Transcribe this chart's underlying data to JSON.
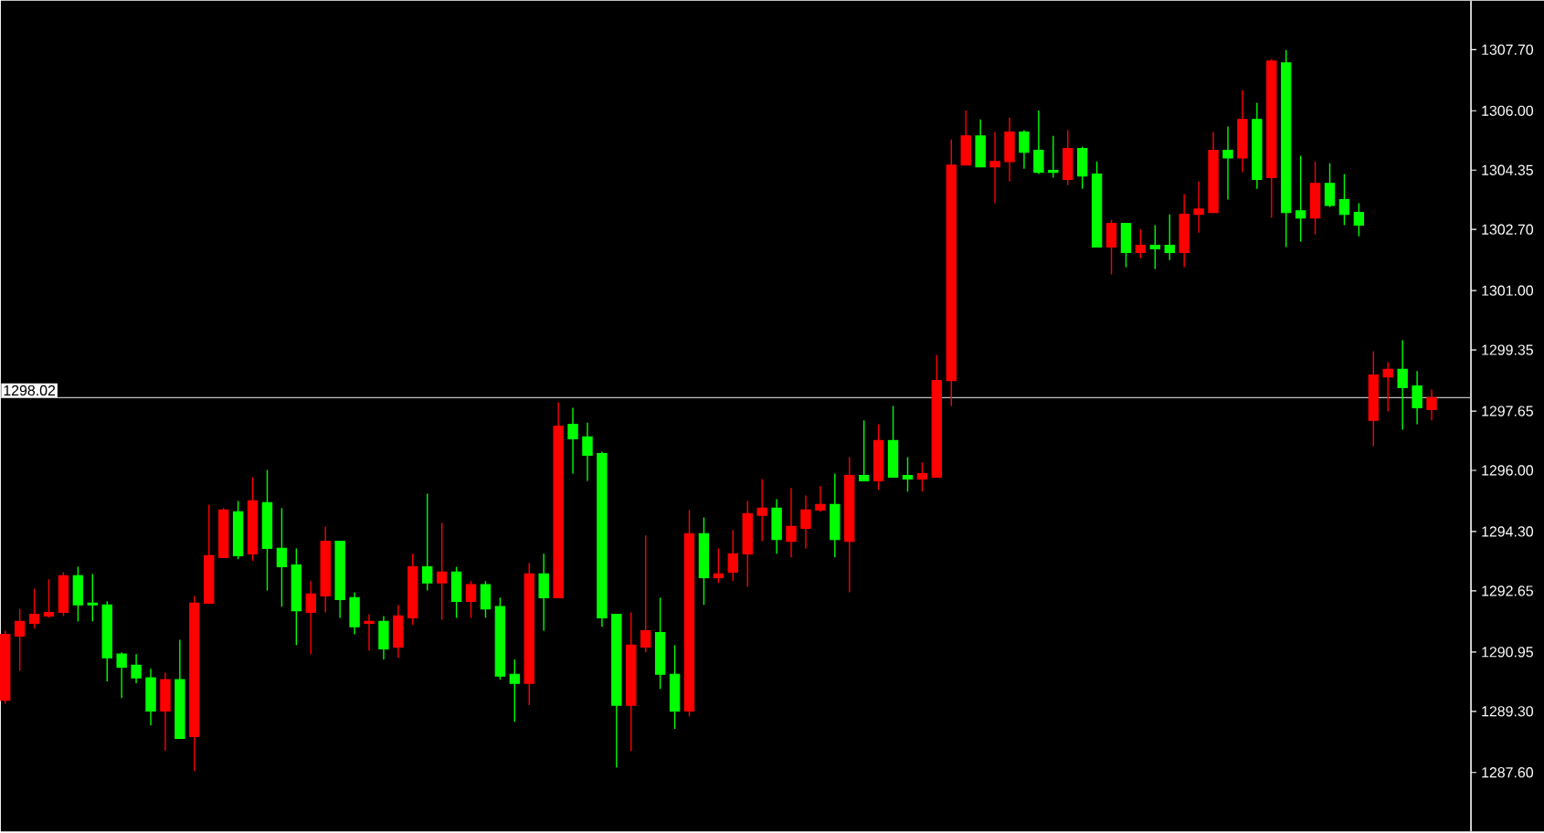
{
  "chart_data": {
    "type": "candlestick",
    "categories": [
      null,
      null,
      null,
      null,
      null,
      null,
      null,
      null,
      null,
      null,
      null,
      null,
      null,
      null,
      null,
      null,
      null,
      null,
      null,
      null,
      null,
      null,
      null,
      null,
      null,
      null,
      null,
      null,
      null,
      null,
      null,
      null,
      null,
      null,
      null,
      null,
      null,
      null,
      null,
      null,
      null,
      null,
      null,
      null,
      null,
      null,
      null,
      null,
      null,
      null,
      null,
      null,
      null,
      null,
      null,
      null,
      null,
      null,
      null,
      null,
      null,
      null,
      null,
      null,
      null,
      null,
      null,
      null,
      null,
      null,
      null,
      null,
      null,
      null,
      null,
      null,
      null,
      null,
      null,
      null,
      null,
      null,
      null,
      null,
      null,
      null,
      null,
      null,
      null,
      null,
      null,
      null,
      null,
      null,
      null,
      null,
      null,
      null,
      null
    ],
    "ohlc": [
      [
        1289.61,
        1291.54,
        1289.51,
        1291.44
      ],
      [
        1291.39,
        1292.15,
        1290.43,
        1291.8
      ],
      [
        1291.75,
        1292.71,
        1291.6,
        1292.0
      ],
      [
        1291.95,
        1292.97,
        1291.9,
        1292.05
      ],
      [
        1292.05,
        1293.17,
        1291.95,
        1293.07
      ],
      [
        1293.07,
        1293.32,
        1291.8,
        1292.26
      ],
      [
        1292.31,
        1293.12,
        1291.8,
        1292.26
      ],
      [
        1292.26,
        1292.36,
        1290.13,
        1290.79
      ],
      [
        1290.89,
        1290.94,
        1289.67,
        1290.53
      ],
      [
        1290.58,
        1290.89,
        1290.08,
        1290.23
      ],
      [
        1290.23,
        1290.48,
        1288.91,
        1289.31
      ],
      [
        1289.31,
        1290.38,
        1288.2,
        1290.18
      ],
      [
        1290.18,
        1291.29,
        1288.55,
        1288.55
      ],
      [
        1288.6,
        1292.51,
        1287.64,
        1292.31
      ],
      [
        1292.31,
        1295.05,
        1292.31,
        1293.63
      ],
      [
        1293.58,
        1294.95,
        1293.58,
        1294.9
      ],
      [
        1294.85,
        1295.15,
        1293.53,
        1293.63
      ],
      [
        1293.68,
        1295.81,
        1293.48,
        1295.15
      ],
      [
        1295.1,
        1296.01,
        1292.66,
        1293.83
      ],
      [
        1293.83,
        1294.95,
        1292.21,
        1293.32
      ],
      [
        1293.37,
        1293.83,
        1291.14,
        1292.1
      ],
      [
        1292.05,
        1292.92,
        1290.89,
        1292.56
      ],
      [
        1292.51,
        1294.44,
        1292.05,
        1294.03
      ],
      [
        1294.03,
        1294.03,
        1291.9,
        1292.41
      ],
      [
        1292.46,
        1292.61,
        1291.44,
        1291.65
      ],
      [
        1291.75,
        1292.0,
        1290.99,
        1291.8
      ],
      [
        1291.8,
        1291.95,
        1290.74,
        1291.04
      ],
      [
        1291.09,
        1292.26,
        1290.79,
        1291.95
      ],
      [
        1291.9,
        1293.68,
        1291.7,
        1293.32
      ],
      [
        1293.32,
        1295.35,
        1292.66,
        1292.87
      ],
      [
        1292.87,
        1294.54,
        1291.85,
        1293.17
      ],
      [
        1293.17,
        1293.32,
        1291.9,
        1292.36
      ],
      [
        1292.36,
        1292.92,
        1291.9,
        1292.82
      ],
      [
        1292.82,
        1292.92,
        1291.9,
        1292.15
      ],
      [
        1292.21,
        1292.46,
        1290.18,
        1290.28
      ],
      [
        1290.33,
        1290.74,
        1289.01,
        1290.08
      ],
      [
        1290.08,
        1293.43,
        1289.47,
        1293.12
      ],
      [
        1293.12,
        1293.68,
        1291.54,
        1292.46
      ],
      [
        1292.46,
        1297.89,
        1292.46,
        1297.23
      ],
      [
        1297.28,
        1297.74,
        1295.91,
        1296.88
      ],
      [
        1296.93,
        1297.33,
        1295.71,
        1296.42
      ],
      [
        1296.47,
        1296.52,
        1291.65,
        1291.9
      ],
      [
        1292.0,
        1292.0,
        1287.74,
        1289.47
      ],
      [
        1289.47,
        1292.05,
        1288.2,
        1291.14
      ],
      [
        1291.09,
        1294.19,
        1290.94,
        1291.54
      ],
      [
        1291.49,
        1292.46,
        1289.92,
        1290.33
      ],
      [
        1290.33,
        1291.14,
        1288.81,
        1289.31
      ],
      [
        1289.31,
        1294.9,
        1289.16,
        1294.24
      ],
      [
        1294.24,
        1294.69,
        1292.26,
        1293.02
      ],
      [
        1293.02,
        1293.83,
        1292.87,
        1293.12
      ],
      [
        1293.17,
        1294.34,
        1292.92,
        1293.68
      ],
      [
        1293.68,
        1295.15,
        1292.77,
        1294.8
      ],
      [
        1294.75,
        1295.76,
        1294.03,
        1294.95
      ],
      [
        1294.95,
        1295.2,
        1293.68,
        1294.08
      ],
      [
        1294.03,
        1295.51,
        1293.58,
        1294.44
      ],
      [
        1294.39,
        1295.3,
        1293.83,
        1294.9
      ],
      [
        1294.9,
        1295.56,
        1294.85,
        1295.05
      ],
      [
        1295.05,
        1295.91,
        1293.58,
        1294.08
      ],
      [
        1294.03,
        1296.37,
        1292.61,
        1295.86
      ],
      [
        1295.86,
        1297.39,
        1295.71,
        1295.71
      ],
      [
        1295.71,
        1297.28,
        1295.46,
        1296.83
      ],
      [
        1296.83,
        1297.79,
        1295.81,
        1295.81
      ],
      [
        1295.86,
        1296.37,
        1295.41,
        1295.76
      ],
      [
        1295.76,
        1296.22,
        1295.41,
        1295.91
      ],
      [
        1295.81,
        1299.21,
        1295.81,
        1298.5
      ],
      [
        1298.5,
        1305.2,
        1297.79,
        1304.49
      ],
      [
        1304.49,
        1306.01,
        1304.49,
        1305.3
      ],
      [
        1305.3,
        1305.76,
        1304.44,
        1304.44
      ],
      [
        1304.44,
        1305.41,
        1303.43,
        1304.59
      ],
      [
        1304.59,
        1305.81,
        1304.03,
        1305.41
      ],
      [
        1305.41,
        1305.46,
        1304.39,
        1304.85
      ],
      [
        1304.9,
        1306.01,
        1304.24,
        1304.29
      ],
      [
        1304.34,
        1305.3,
        1304.14,
        1304.29
      ],
      [
        1304.09,
        1305.46,
        1303.93,
        1304.95
      ],
      [
        1304.95,
        1305.0,
        1303.83,
        1304.19
      ],
      [
        1304.24,
        1304.59,
        1302.21,
        1302.21
      ],
      [
        1302.21,
        1302.97,
        1301.45,
        1302.87
      ],
      [
        1302.87,
        1302.87,
        1301.65,
        1302.06
      ],
      [
        1302.06,
        1302.71,
        1301.9,
        1302.26
      ],
      [
        1302.26,
        1302.82,
        1301.6,
        1302.16
      ],
      [
        1302.26,
        1303.12,
        1301.85,
        1302.06
      ],
      [
        1302.06,
        1303.68,
        1301.65,
        1303.12
      ],
      [
        1303.12,
        1304.03,
        1302.61,
        1303.27
      ],
      [
        1303.17,
        1305.41,
        1303.17,
        1304.9
      ],
      [
        1304.9,
        1305.56,
        1303.53,
        1304.69
      ],
      [
        1304.69,
        1306.57,
        1304.29,
        1305.76
      ],
      [
        1305.76,
        1306.22,
        1303.83,
        1304.09
      ],
      [
        1304.14,
        1307.44,
        1303.02,
        1307.38
      ],
      [
        1307.33,
        1307.69,
        1302.21,
        1303.17
      ],
      [
        1303.22,
        1304.75,
        1302.36,
        1303.02
      ],
      [
        1303.02,
        1304.59,
        1302.56,
        1303.98
      ],
      [
        1303.98,
        1304.54,
        1303.32,
        1303.37
      ],
      [
        1303.53,
        1304.24,
        1302.82,
        1303.12
      ],
      [
        1303.17,
        1303.43,
        1302.51,
        1302.82
      ],
      [
        1297.39,
        1299.31,
        1296.67,
        1298.65
      ],
      [
        1298.6,
        1299.01,
        1297.64,
        1298.81
      ],
      [
        1298.81,
        1299.62,
        1297.13,
        1298.3
      ],
      [
        1298.35,
        1298.76,
        1297.28,
        1297.74
      ],
      [
        1297.69,
        1298.25,
        1297.39,
        1298.02
      ]
    ],
    "colors": [
      "#ff0000",
      "#ff0000",
      "#ff0000",
      "#ff0000",
      "#ff0000",
      "#00ff00",
      "#00ff00",
      "#00ff00",
      "#00ff00",
      "#00ff00",
      "#00ff00",
      "#ff0000",
      "#00ff00",
      "#ff0000",
      "#ff0000",
      "#ff0000",
      "#00ff00",
      "#ff0000",
      "#00ff00",
      "#00ff00",
      "#00ff00",
      "#ff0000",
      "#ff0000",
      "#00ff00",
      "#00ff00",
      "#ff0000",
      "#00ff00",
      "#ff0000",
      "#ff0000",
      "#00ff00",
      "#ff0000",
      "#00ff00",
      "#ff0000",
      "#00ff00",
      "#00ff00",
      "#00ff00",
      "#ff0000",
      "#00ff00",
      "#ff0000",
      "#00ff00",
      "#00ff00",
      "#00ff00",
      "#00ff00",
      "#ff0000",
      "#ff0000",
      "#00ff00",
      "#00ff00",
      "#ff0000",
      "#00ff00",
      "#ff0000",
      "#ff0000",
      "#ff0000",
      "#ff0000",
      "#00ff00",
      "#ff0000",
      "#ff0000",
      "#ff0000",
      "#00ff00",
      "#ff0000",
      "#00ff00",
      "#ff0000",
      "#00ff00",
      "#00ff00",
      "#ff0000",
      "#ff0000",
      "#ff0000",
      "#ff0000",
      "#00ff00",
      "#ff0000",
      "#ff0000",
      "#00ff00",
      "#00ff00",
      "#00ff00",
      "#ff0000",
      "#00ff00",
      "#00ff00",
      "#ff0000",
      "#00ff00",
      "#ff0000",
      "#00ff00",
      "#00ff00",
      "#ff0000",
      "#ff0000",
      "#ff0000",
      "#00ff00",
      "#ff0000",
      "#00ff00",
      "#ff0000",
      "#00ff00",
      "#00ff00",
      "#ff0000",
      "#00ff00",
      "#00ff00",
      "#00ff00",
      "#ff0000",
      "#ff0000",
      "#00ff00",
      "#00ff00",
      "#ff0000"
    ],
    "ylim": [
      1285.96,
      1309.06
    ],
    "yticks": [
      {
        "value": 1287.6,
        "label": "1287.60"
      },
      {
        "value": 1289.3,
        "label": "1289.30"
      },
      {
        "value": 1290.95,
        "label": "1290.95"
      },
      {
        "value": 1292.65,
        "label": "1292.65"
      },
      {
        "value": 1294.3,
        "label": "1294.30"
      },
      {
        "value": 1296.0,
        "label": "1296.00"
      },
      {
        "value": 1297.65,
        "label": "1297.65"
      },
      {
        "value": 1299.35,
        "label": "1299.35"
      },
      {
        "value": 1301.0,
        "label": "1301.00"
      },
      {
        "value": 1302.7,
        "label": "1302.70"
      },
      {
        "value": 1304.35,
        "label": "1304.35"
      },
      {
        "value": 1306.0,
        "label": "1306.00"
      },
      {
        "value": 1307.7,
        "label": "1307.70"
      }
    ],
    "ref_lines": [
      {
        "axis": "y",
        "value": 1298.02,
        "label": "1298.02",
        "color": "#c0c0c0"
      }
    ],
    "tick_labels": "y"
  }
}
